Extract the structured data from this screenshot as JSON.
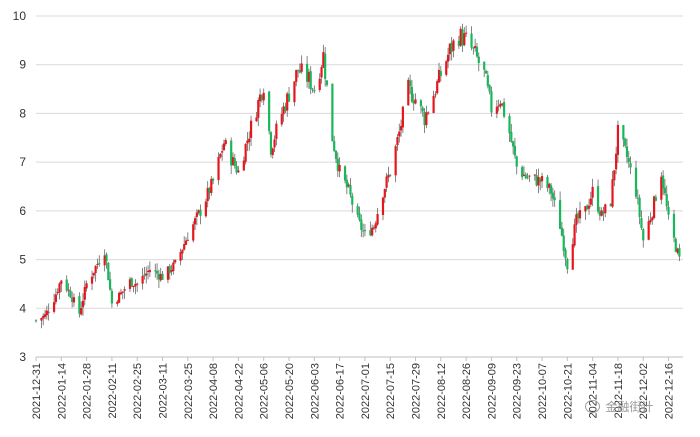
{
  "colors": {
    "up": "#e6161c",
    "down": "#18b85a",
    "wick": "#666666",
    "grid": "#d9d9d9"
  },
  "watermark": {
    "icon": "wechat-icon",
    "text": "金融街计"
  },
  "chart_data": {
    "type": "candlestick",
    "ylim": [
      3,
      10
    ],
    "y_ticks": [
      "3",
      "4",
      "5",
      "6",
      "7",
      "8",
      "9",
      "10"
    ],
    "x_ticks": [
      "2021-12-31",
      "2022-01-14",
      "2022-01-28",
      "2022-02-11",
      "2022-02-25",
      "2022-03-11",
      "2022-03-25",
      "2022-04-08",
      "2022-04-22",
      "2022-05-06",
      "2022-05-20",
      "2022-06-03",
      "2022-06-17",
      "2022-07-01",
      "2022-07-15",
      "2022-07-29",
      "2022-08-12",
      "2022-08-26",
      "2022-09-09",
      "2022-09-23",
      "2022-10-07",
      "2022-10-21",
      "2022-11-04",
      "2022-11-18",
      "2022-12-02",
      "2022-12-16"
    ],
    "grid": "horizontal",
    "approx_close_path": [
      [
        "2021-12-31",
        3.75
      ],
      [
        "2022-01-05",
        3.85
      ],
      [
        "2022-01-10",
        4.2
      ],
      [
        "2022-01-14",
        4.6
      ],
      [
        "2022-01-19",
        4.3
      ],
      [
        "2022-01-24",
        3.9
      ],
      [
        "2022-01-28",
        4.5
      ],
      [
        "2022-02-07",
        5.2
      ],
      [
        "2022-02-11",
        4.1
      ],
      [
        "2022-02-16",
        4.3
      ],
      [
        "2022-02-21",
        4.55
      ],
      [
        "2022-02-25",
        4.5
      ],
      [
        "2022-03-04",
        4.8
      ],
      [
        "2022-03-11",
        4.65
      ],
      [
        "2022-03-18",
        4.9
      ],
      [
        "2022-03-25",
        5.5
      ],
      [
        "2022-04-01",
        6.0
      ],
      [
        "2022-04-08",
        6.6
      ],
      [
        "2022-04-14",
        7.4
      ],
      [
        "2022-04-19",
        7.0
      ],
      [
        "2022-04-22",
        6.8
      ],
      [
        "2022-04-28",
        7.6
      ],
      [
        "2022-05-06",
        8.6
      ],
      [
        "2022-05-10",
        7.3
      ],
      [
        "2022-05-16",
        8.0
      ],
      [
        "2022-05-20",
        8.4
      ],
      [
        "2022-05-25",
        8.9
      ],
      [
        "2022-05-31",
        8.7
      ],
      [
        "2022-06-03",
        8.5
      ],
      [
        "2022-06-08",
        9.2
      ],
      [
        "2022-06-13",
        7.5
      ],
      [
        "2022-06-17",
        6.8
      ],
      [
        "2022-06-22",
        6.4
      ],
      [
        "2022-06-27",
        5.8
      ],
      [
        "2022-07-01",
        5.5
      ],
      [
        "2022-07-06",
        5.7
      ],
      [
        "2022-07-11",
        6.4
      ],
      [
        "2022-07-15",
        6.8
      ],
      [
        "2022-07-20",
        7.6
      ],
      [
        "2022-07-25",
        8.5
      ],
      [
        "2022-07-29",
        8.3
      ],
      [
        "2022-08-03",
        7.9
      ],
      [
        "2022-08-08",
        8.4
      ],
      [
        "2022-08-12",
        8.8
      ],
      [
        "2022-08-17",
        9.3
      ],
      [
        "2022-08-22",
        9.6
      ],
      [
        "2022-08-26",
        9.5
      ],
      [
        "2022-08-31",
        9.2
      ],
      [
        "2022-09-05",
        8.8
      ],
      [
        "2022-09-09",
        8.1
      ],
      [
        "2022-09-14",
        8.3
      ],
      [
        "2022-09-19",
        7.6
      ],
      [
        "2022-09-23",
        6.9
      ],
      [
        "2022-09-28",
        6.7
      ],
      [
        "2022-10-07",
        6.6
      ],
      [
        "2022-10-12",
        6.4
      ],
      [
        "2022-10-17",
        5.7
      ],
      [
        "2022-10-21",
        4.9
      ],
      [
        "2022-10-26",
        5.8
      ],
      [
        "2022-10-31",
        6.0
      ],
      [
        "2022-11-04",
        6.4
      ],
      [
        "2022-11-09",
        5.9
      ],
      [
        "2022-11-14",
        6.2
      ],
      [
        "2022-11-18",
        7.6
      ],
      [
        "2022-11-23",
        7.1
      ],
      [
        "2022-11-28",
        6.4
      ],
      [
        "2022-12-02",
        5.4
      ],
      [
        "2022-12-07",
        6.0
      ],
      [
        "2022-12-12",
        6.8
      ],
      [
        "2022-12-16",
        5.8
      ],
      [
        "2022-12-22",
        5.0
      ]
    ]
  }
}
